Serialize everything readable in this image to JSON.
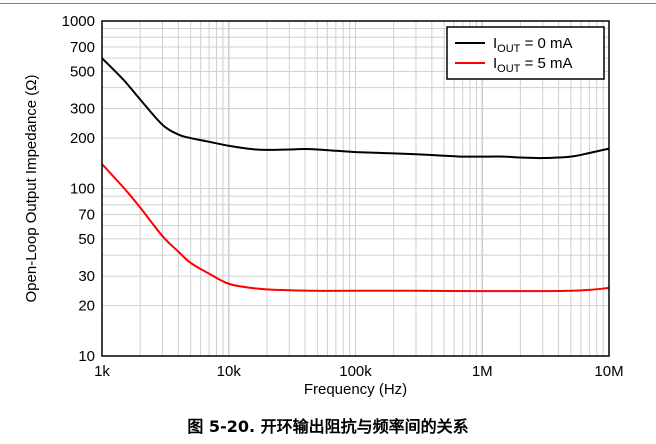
{
  "figure": {
    "caption": "图 5-20. 开环输出阻抗与频率间的关系"
  },
  "chart_data": {
    "type": "line",
    "xlabel": "Frequency (Hz)",
    "ylabel": "Open-Loop Output Impedance (Ω)",
    "x_scale": "log",
    "y_scale": "log",
    "xlim": [
      1000,
      10000000
    ],
    "ylim": [
      10,
      1000
    ],
    "grid": true,
    "legend_position": "top-right",
    "x_ticks": [
      {
        "value": 1000,
        "label": "1k"
      },
      {
        "value": 10000,
        "label": "10k"
      },
      {
        "value": 100000,
        "label": "100k"
      },
      {
        "value": 1000000,
        "label": "1M"
      },
      {
        "value": 10000000,
        "label": "10M"
      }
    ],
    "y_ticks": [
      {
        "value": 10,
        "label": "10"
      },
      {
        "value": 20,
        "label": "20"
      },
      {
        "value": 30,
        "label": "30"
      },
      {
        "value": 50,
        "label": "50"
      },
      {
        "value": 70,
        "label": "70"
      },
      {
        "value": 100,
        "label": "100"
      },
      {
        "value": 200,
        "label": "200"
      },
      {
        "value": 300,
        "label": "300"
      },
      {
        "value": 500,
        "label": "500"
      },
      {
        "value": 700,
        "label": "700"
      },
      {
        "value": 1000,
        "label": "1000"
      }
    ],
    "series": [
      {
        "name": "I_OUT = 0 mA",
        "legend_main": "I",
        "legend_sub": "OUT",
        "legend_rest": " = 0 mA",
        "color": "#000000",
        "points": [
          [
            1000,
            600
          ],
          [
            1500,
            440
          ],
          [
            2000,
            340
          ],
          [
            3000,
            240
          ],
          [
            4000,
            210
          ],
          [
            5000,
            200
          ],
          [
            7000,
            190
          ],
          [
            10000,
            180
          ],
          [
            15000,
            172
          ],
          [
            20000,
            170
          ],
          [
            30000,
            171
          ],
          [
            40000,
            172
          ],
          [
            50000,
            171
          ],
          [
            70000,
            168
          ],
          [
            100000,
            165
          ],
          [
            200000,
            162
          ],
          [
            300000,
            160
          ],
          [
            500000,
            157
          ],
          [
            700000,
            155
          ],
          [
            1000000,
            155
          ],
          [
            1500000,
            155
          ],
          [
            2000000,
            153
          ],
          [
            3000000,
            152
          ],
          [
            5000000,
            155
          ],
          [
            7000000,
            163
          ],
          [
            10000000,
            173
          ]
        ]
      },
      {
        "name": "I_OUT = 5 mA",
        "legend_main": "I",
        "legend_sub": "OUT",
        "legend_rest": " = 5 mA",
        "color": "#ff0000",
        "points": [
          [
            1000,
            140
          ],
          [
            1500,
            100
          ],
          [
            2000,
            77
          ],
          [
            3000,
            52
          ],
          [
            4000,
            42
          ],
          [
            5000,
            36
          ],
          [
            7000,
            31
          ],
          [
            10000,
            27
          ],
          [
            15000,
            25.5
          ],
          [
            20000,
            25
          ],
          [
            30000,
            24.7
          ],
          [
            50000,
            24.5
          ],
          [
            100000,
            24.5
          ],
          [
            300000,
            24.5
          ],
          [
            1000000,
            24.4
          ],
          [
            3000000,
            24.4
          ],
          [
            5000000,
            24.5
          ],
          [
            7000000,
            24.8
          ],
          [
            10000000,
            25.5
          ]
        ]
      }
    ]
  }
}
